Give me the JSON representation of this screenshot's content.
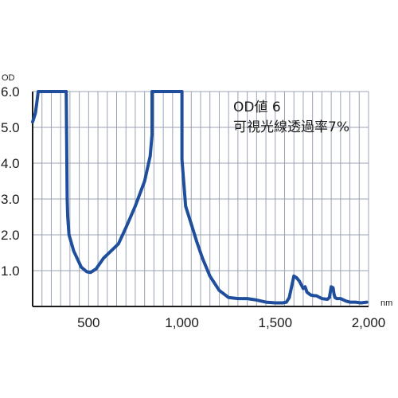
{
  "chart_data": {
    "type": "line",
    "ylabel": "OD",
    "xlabel": "nm",
    "xlim": [
      200,
      2000
    ],
    "ylim": [
      0,
      6.0
    ],
    "x_ticks": [
      500,
      1000,
      1500,
      2000
    ],
    "x_tick_labels": [
      "500",
      "1,000",
      "1,500",
      "2,000"
    ],
    "y_ticks": [
      1.0,
      2.0,
      3.0,
      4.0,
      5.0,
      6.0
    ],
    "y_tick_labels": [
      "1.0",
      "2.0",
      "3.0",
      "4.0",
      "5.0",
      "6.0"
    ],
    "grid": true,
    "annotations": [
      "OD値 6",
      "可視光線透過率7%"
    ],
    "series": [
      {
        "color": "#1f4e9c",
        "x": [
          200,
          215,
          225,
          230,
          380,
          385,
          388,
          395,
          420,
          460,
          490,
          510,
          540,
          580,
          620,
          660,
          700,
          750,
          800,
          830,
          840,
          840,
          1000,
          1000,
          1020,
          1050,
          1080,
          1110,
          1150,
          1200,
          1250,
          1300,
          1350,
          1400,
          1450,
          1500,
          1540,
          1560,
          1575,
          1600,
          1615,
          1630,
          1650,
          1660,
          1670,
          1690,
          1710,
          1720,
          1750,
          1780,
          1790,
          1800,
          1810,
          1815,
          1820,
          1830,
          1850,
          1880,
          1900,
          1930,
          1960,
          1990
        ],
        "values": [
          5.15,
          5.4,
          5.8,
          6.0,
          6.0,
          3.0,
          2.5,
          2.0,
          1.55,
          1.1,
          0.97,
          0.95,
          1.05,
          1.35,
          1.55,
          1.75,
          2.2,
          2.8,
          3.5,
          4.2,
          4.8,
          6.0,
          6.0,
          4.1,
          2.8,
          2.3,
          1.8,
          1.35,
          0.85,
          0.45,
          0.25,
          0.22,
          0.22,
          0.18,
          0.12,
          0.1,
          0.1,
          0.12,
          0.25,
          0.85,
          0.8,
          0.7,
          0.5,
          0.55,
          0.4,
          0.32,
          0.3,
          0.3,
          0.22,
          0.2,
          0.25,
          0.55,
          0.52,
          0.35,
          0.25,
          0.22,
          0.22,
          0.15,
          0.12,
          0.12,
          0.1,
          0.12
        ]
      }
    ]
  }
}
